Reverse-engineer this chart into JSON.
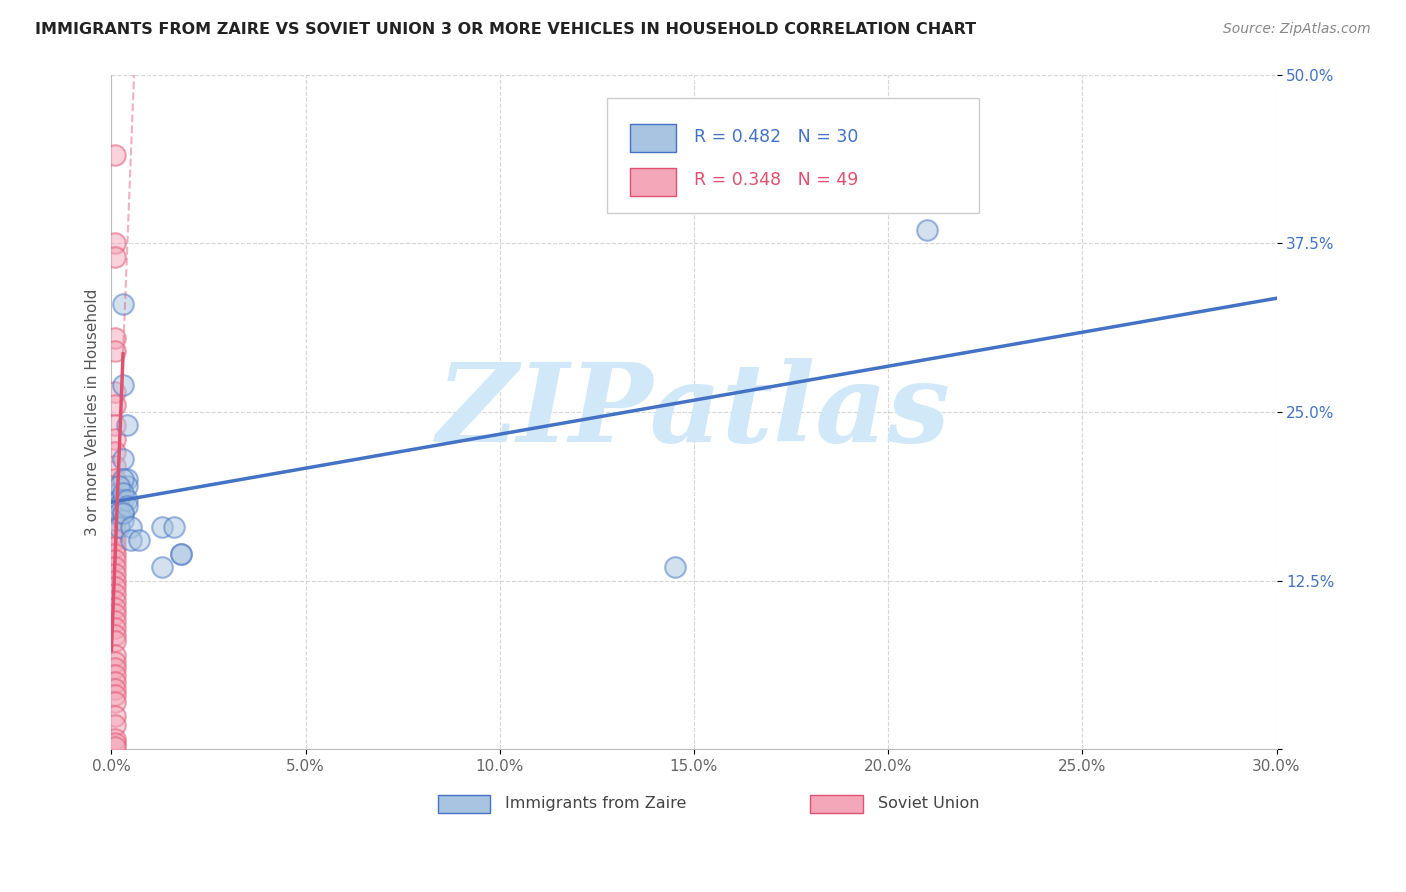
{
  "title": "IMMIGRANTS FROM ZAIRE VS SOVIET UNION 3 OR MORE VEHICLES IN HOUSEHOLD CORRELATION CHART",
  "source": "Source: ZipAtlas.com",
  "ylabel": "3 or more Vehicles in Household",
  "xlim": [
    0.0,
    0.3
  ],
  "ylim": [
    0.0,
    0.5
  ],
  "xticks": [
    0.0,
    0.05,
    0.1,
    0.15,
    0.2,
    0.25,
    0.3
  ],
  "xticklabels": [
    "0.0%",
    "5.0%",
    "10.0%",
    "15.0%",
    "20.0%",
    "25.0%",
    "30.0%"
  ],
  "yticks": [
    0.0,
    0.125,
    0.25,
    0.375,
    0.5
  ],
  "yticklabels": [
    "",
    "12.5%",
    "25.0%",
    "37.5%",
    "50.0%"
  ],
  "blue_color": "#4472c4",
  "blue_light": "#a8c4e0",
  "pink_color": "#e05070",
  "pink_light": "#f4a7b9",
  "watermark": "ZIPatlas",
  "watermark_color": "#d0e8f8",
  "background_color": "#ffffff",
  "grid_color": "#cccccc",
  "zaire_x": [
    0.002,
    0.003,
    0.004,
    0.004,
    0.003,
    0.004,
    0.003,
    0.003,
    0.002,
    0.002,
    0.003,
    0.002,
    0.003,
    0.002,
    0.003,
    0.002,
    0.003,
    0.004,
    0.004,
    0.003,
    0.005,
    0.005,
    0.007,
    0.013,
    0.013,
    0.016,
    0.018,
    0.018,
    0.21,
    0.145
  ],
  "zaire_y": [
    0.19,
    0.33,
    0.2,
    0.24,
    0.27,
    0.195,
    0.215,
    0.2,
    0.195,
    0.185,
    0.185,
    0.18,
    0.175,
    0.175,
    0.17,
    0.165,
    0.19,
    0.185,
    0.18,
    0.175,
    0.165,
    0.155,
    0.155,
    0.135,
    0.165,
    0.165,
    0.145,
    0.145,
    0.385,
    0.135
  ],
  "soviet_x": [
    0.001,
    0.001,
    0.001,
    0.001,
    0.001,
    0.001,
    0.001,
    0.001,
    0.001,
    0.001,
    0.001,
    0.001,
    0.001,
    0.001,
    0.001,
    0.001,
    0.001,
    0.001,
    0.001,
    0.001,
    0.001,
    0.001,
    0.001,
    0.001,
    0.001,
    0.001,
    0.001,
    0.001,
    0.001,
    0.001,
    0.001,
    0.001,
    0.001,
    0.001,
    0.001,
    0.001,
    0.001,
    0.001,
    0.001,
    0.001,
    0.001,
    0.001,
    0.001,
    0.001,
    0.001,
    0.001,
    0.001,
    0.001,
    0.001
  ],
  "soviet_y": [
    0.44,
    0.375,
    0.365,
    0.305,
    0.295,
    0.265,
    0.255,
    0.24,
    0.23,
    0.22,
    0.21,
    0.2,
    0.195,
    0.19,
    0.185,
    0.18,
    0.175,
    0.17,
    0.165,
    0.16,
    0.155,
    0.15,
    0.145,
    0.14,
    0.135,
    0.13,
    0.125,
    0.12,
    0.115,
    0.11,
    0.105,
    0.1,
    0.095,
    0.09,
    0.085,
    0.08,
    0.07,
    0.065,
    0.06,
    0.055,
    0.05,
    0.045,
    0.04,
    0.035,
    0.025,
    0.018,
    0.008,
    0.005,
    0.002
  ],
  "R_zaire": 0.482,
  "N_zaire": 30,
  "R_soviet": 0.348,
  "N_soviet": 49
}
